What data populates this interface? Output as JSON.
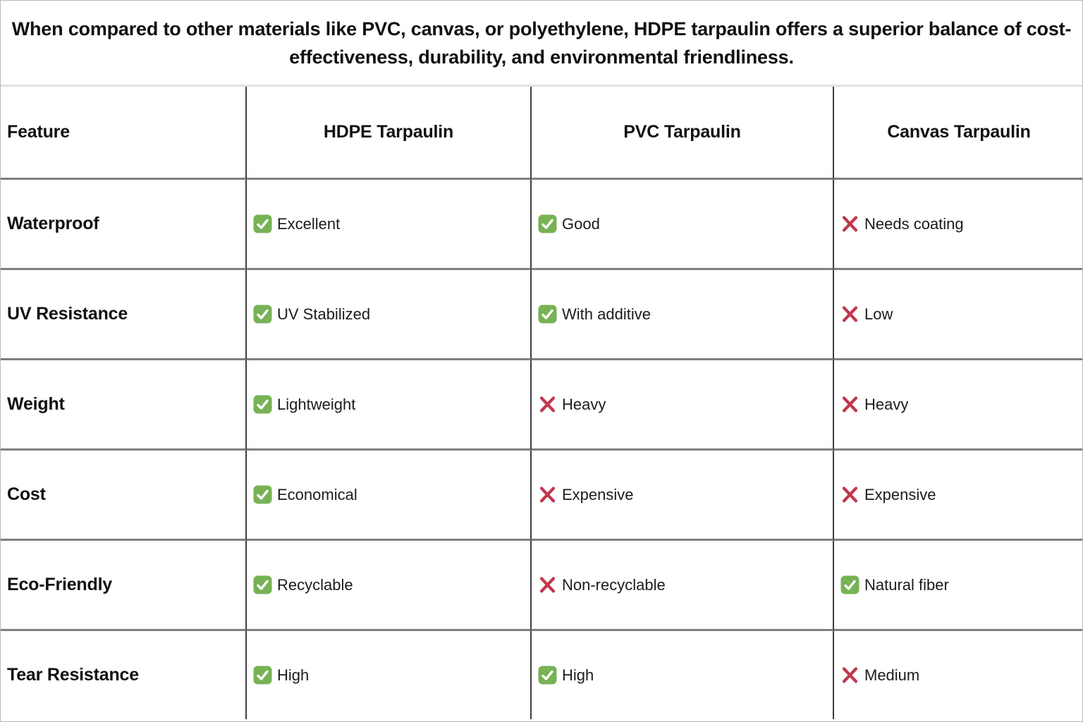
{
  "banner": {
    "text": "When compared to other materials like PVC, canvas, or polyethylene, HDPE tarpaulin offers a superior balance of cost-effectiveness, durability, and environmental friendliness."
  },
  "table": {
    "columns": [
      "Feature",
      "HDPE Tarpaulin",
      "PVC Tarpaulin",
      "Canvas Tarpaulin"
    ],
    "rows": [
      {
        "feature": "Waterproof",
        "cells": [
          {
            "status": "check",
            "text": "Excellent"
          },
          {
            "status": "check",
            "text": "Good"
          },
          {
            "status": "cross",
            "text": "Needs coating"
          }
        ]
      },
      {
        "feature": "UV Resistance",
        "cells": [
          {
            "status": "check",
            "text": "UV Stabilized"
          },
          {
            "status": "check",
            "text": "With additive"
          },
          {
            "status": "cross",
            "text": "Low"
          }
        ]
      },
      {
        "feature": "Weight",
        "cells": [
          {
            "status": "check",
            "text": "Lightweight"
          },
          {
            "status": "cross",
            "text": "Heavy"
          },
          {
            "status": "cross",
            "text": "Heavy"
          }
        ]
      },
      {
        "feature": "Cost",
        "cells": [
          {
            "status": "check",
            "text": "Economical"
          },
          {
            "status": "cross",
            "text": "Expensive"
          },
          {
            "status": "cross",
            "text": "Expensive"
          }
        ]
      },
      {
        "feature": "Eco-Friendly",
        "cells": [
          {
            "status": "check",
            "text": "Recyclable"
          },
          {
            "status": "cross",
            "text": "Non-recyclable"
          },
          {
            "status": "check",
            "text": "Natural fiber"
          }
        ]
      },
      {
        "feature": "Tear Resistance",
        "cells": [
          {
            "status": "check",
            "text": "High"
          },
          {
            "status": "check",
            "text": "High"
          },
          {
            "status": "cross",
            "text": "Medium"
          }
        ]
      }
    ]
  },
  "colors": {
    "check_green": "#77B255",
    "cross_red": "#C0374E",
    "grid_horizontal": "#7f7f7f",
    "grid_vertical": "#3e3e3e"
  }
}
